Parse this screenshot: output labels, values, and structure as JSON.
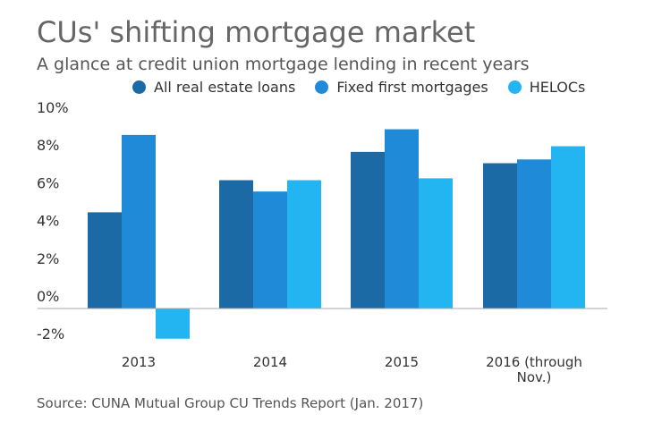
{
  "title": "CUs' shifting mortgage market",
  "subtitle": "A glance at credit union mortgage lending in recent years",
  "source": "Source: CUNA Mutual Group CU Trends Report (Jan. 2017)",
  "legend": [
    {
      "label": "All real estate loans",
      "color": "#1b6aa5"
    },
    {
      "label": "Fixed first mortgages",
      "color": "#1f8ad8"
    },
    {
      "label": "HELOCs",
      "color": "#22b5f2"
    }
  ],
  "chart_data": {
    "type": "bar",
    "categories": [
      "2013",
      "2014",
      "2015",
      "2016 (through Nov.)"
    ],
    "category_lines": [
      [
        "2013"
      ],
      [
        "2014"
      ],
      [
        "2015"
      ],
      [
        "2016 (through",
        "Nov.)"
      ]
    ],
    "series": [
      {
        "name": "All real estate loans",
        "color": "#1b6aa5",
        "values": [
          5.1,
          6.8,
          8.3,
          7.7
        ]
      },
      {
        "name": "Fixed first mortgages",
        "color": "#1f8ad8",
        "values": [
          9.2,
          6.2,
          9.5,
          7.9
        ]
      },
      {
        "name": "HELOCs",
        "color": "#22b5f2",
        "values": [
          -1.6,
          6.8,
          6.9,
          8.6
        ]
      }
    ],
    "yticks": [
      "10%",
      "8%",
      "6%",
      "4%",
      "2%",
      "0%",
      "-2%"
    ],
    "ytick_values": [
      10,
      8,
      6,
      4,
      2,
      0,
      -2
    ],
    "ylim": [
      -2,
      10
    ],
    "grid": false,
    "legend_position": "top"
  }
}
